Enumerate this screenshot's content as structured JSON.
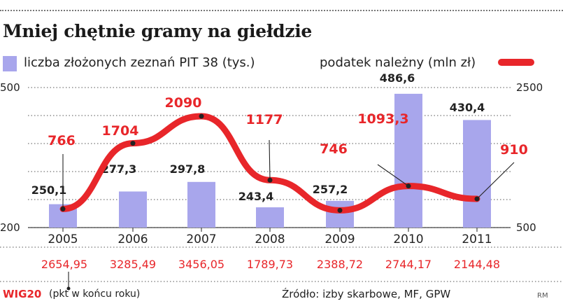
{
  "title": "Mniej chętnie gramy na giełdzie",
  "legend": {
    "bars": "liczba złożonych zeznań PIT 38 (tys.)",
    "line": "podatek należny (mln zł)"
  },
  "colors": {
    "bar": "#a8a6ec",
    "line": "#e8262a",
    "accent_text": "#e8262a"
  },
  "chart_data": {
    "type": "bar",
    "title": "Mniej chętnie gramy na giełdzie",
    "categories": [
      "2005",
      "2006",
      "2007",
      "2008",
      "2009",
      "2010",
      "2011"
    ],
    "series": [
      {
        "name": "liczba złożonych zeznań PIT 38 (tys.)",
        "type": "bar",
        "axis": "left",
        "values": [
          250.1,
          277.3,
          297.8,
          243.4,
          257.2,
          486.6,
          430.4
        ],
        "labels": [
          "250,1",
          "277,3",
          "297,8",
          "243,4",
          "257,2",
          "486,6",
          "430,4"
        ]
      },
      {
        "name": "podatek należny (mln zł)",
        "type": "line",
        "axis": "right",
        "values": [
          766,
          1704,
          2090,
          1177,
          746,
          1093.3,
          910
        ],
        "labels": [
          "766",
          "1704",
          "2090",
          "1177",
          "746",
          "1093,3",
          "910"
        ]
      }
    ],
    "y_left": {
      "min": 200,
      "max": 500,
      "ticks": [
        "200",
        "500"
      ]
    },
    "y_right": {
      "min": 500,
      "max": 2500,
      "ticks": [
        "500",
        "2500"
      ]
    },
    "grid": true
  },
  "wig20": {
    "label": "WIG20",
    "note": "(pkt w końcu roku)",
    "values": [
      "2654,95",
      "3285,49",
      "3456,05",
      "1789,73",
      "2388,72",
      "2744,17",
      "2144,48"
    ]
  },
  "source": "Źródło: izby skarbowe, MF, GPW",
  "credit": "RM"
}
